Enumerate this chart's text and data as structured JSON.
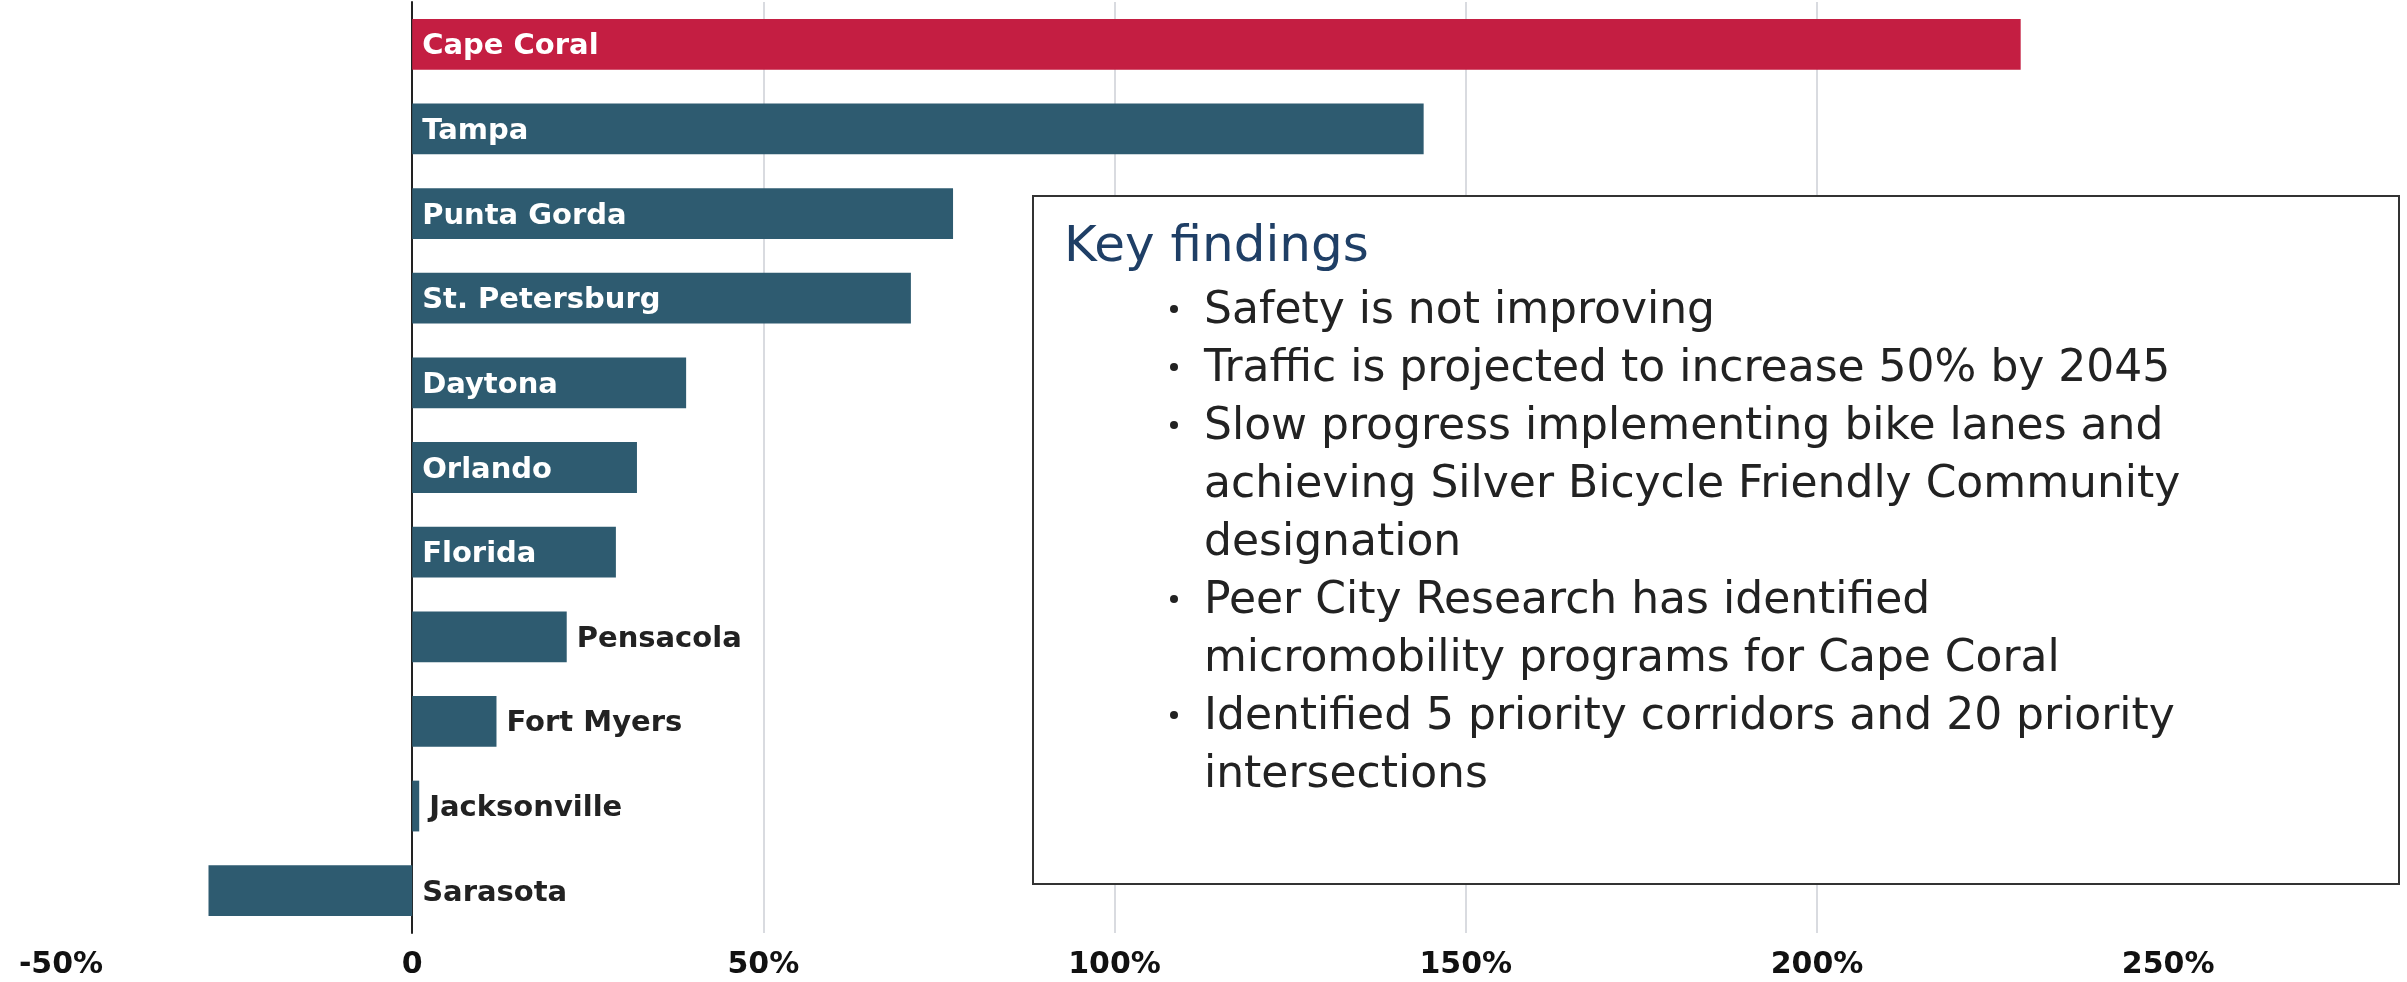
{
  "chart_data": {
    "type": "bar",
    "orientation": "horizontal",
    "categories": [
      "Cape Coral",
      "Tampa",
      "Punta Gorda",
      "St. Petersburg",
      "Daytona",
      "Orlando",
      "Florida",
      "Pensacola",
      "Fort Myers",
      "Jacksonville",
      "Sarasota"
    ],
    "values": [
      229,
      144,
      77,
      71,
      39,
      32,
      29,
      22,
      12,
      1,
      -29
    ],
    "colors": [
      "#c41e42",
      "#2e5b70",
      "#2e5b70",
      "#2e5b70",
      "#2e5b70",
      "#2e5b70",
      "#2e5b70",
      "#2e5b70",
      "#2e5b70",
      "#2e5b70",
      "#2e5b70"
    ],
    "xlim": [
      -50,
      284
    ],
    "xticks": [
      {
        "value": -50,
        "label": "-50%"
      },
      0,
      {
        "value": 50,
        "label": "50%"
      },
      {
        "value": 100,
        "label": "100%"
      },
      {
        "value": 150,
        "label": "150%"
      },
      {
        "value": 200,
        "label": "200%"
      },
      {
        "value": 250,
        "label": "250%"
      }
    ],
    "grid": "x",
    "annotations": [
      "Key findings",
      "Safety is not improving",
      "Traffic is projected to increase 50% by 2045",
      "Slow progress implementing bike lanes and achieving Silver Bicycle Friendly Community designation",
      "Peer City Research has identified micromobility programs for Cape Coral",
      "Identified 5 priority corridors and 20 priority intersections"
    ]
  }
}
